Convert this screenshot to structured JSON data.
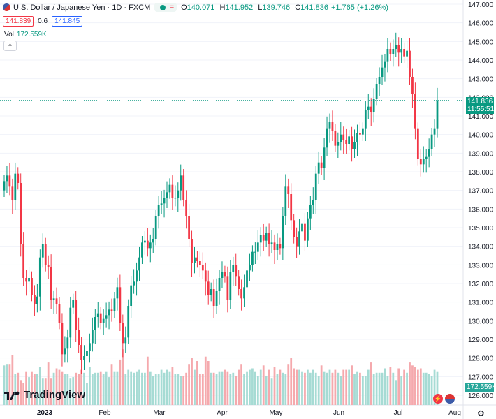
{
  "header": {
    "symbol_title": "U.S. Dollar / Japanese Yen · 1D · FXCM",
    "market_status_label": "=",
    "ohlc": [
      {
        "label": "O",
        "value": "140.071"
      },
      {
        "label": "H",
        "value": "141.952"
      },
      {
        "label": "L",
        "value": "139.746"
      },
      {
        "label": "C",
        "value": "141.836"
      }
    ],
    "change": "+1.765 (+1.26%)"
  },
  "quote": {
    "bid": "141.839",
    "spread": "0.6",
    "ask": "141.845"
  },
  "volume_legend": {
    "label": "Vol",
    "value": "172.559K"
  },
  "collapse_label": "^",
  "price_badge": {
    "price": "141.836",
    "countdown": "11:55:51"
  },
  "volume_badge": "172.559K",
  "logo_text": "TradingView",
  "settings_icon": "gear-icon",
  "colors": {
    "up": "#089981",
    "down": "#f23645",
    "vol_up": "#a6dbd4",
    "vol_down": "#f5a9ad",
    "grid": "#f0f3fa",
    "last_line": "#089981"
  },
  "chart_data": {
    "type": "candlestick",
    "y_ticks": [
      "147.000",
      "146.000",
      "145.000",
      "144.000",
      "143.000",
      "142.000",
      "141.000",
      "140.000",
      "139.000",
      "138.000",
      "137.000",
      "136.000",
      "135.000",
      "134.000",
      "133.000",
      "132.000",
      "131.000",
      "130.000",
      "129.000",
      "128.000",
      "127.000",
      "126.000"
    ],
    "x_ticks": [
      "2023",
      "Feb",
      "Mar",
      "Apr",
      "May",
      "Jun",
      "Jul",
      "Aug"
    ],
    "ylim": [
      126,
      147
    ],
    "last_price": 141.836,
    "closes": [
      137.5,
      137.8,
      137.2,
      136.5,
      137.9,
      137.4,
      134.1,
      132.3,
      132.1,
      132.3,
      131.4,
      130.9,
      131.3,
      133.4,
      134.1,
      133.0,
      132.9,
      131.1,
      131.2,
      130.9,
      129.9,
      128.2,
      128.5,
      129.1,
      130.7,
      131.1,
      129.5,
      128.7,
      127.9,
      128.1,
      128.4,
      128.8,
      129.5,
      130.2,
      130.4,
      129.9,
      130.1,
      130.3,
      130.6,
      130.5,
      131.2,
      131.8,
      129.9,
      128.8,
      129.1,
      130.8,
      131.9,
      132.1,
      132.7,
      133.4,
      134.2,
      134.3,
      133.9,
      134.2,
      134.4,
      135.6,
      136.2,
      136.3,
      136.6,
      136.9,
      137.3,
      136.6,
      136.6,
      137.0,
      137.8,
      136.5,
      135.6,
      134.4,
      133.1,
      133.4,
      133.2,
      133.0,
      132.7,
      132.1,
      131.4,
      131.7,
      130.8,
      131.6,
      132.3,
      132.6,
      132.4,
      131.1,
      132.6,
      133.0,
      132.4,
      131.7,
      131.2,
      131.8,
      132.7,
      133.0,
      133.7,
      133.7,
      134.2,
      134.6,
      134.3,
      134.7,
      134.1,
      134.2,
      133.8,
      134.1,
      133.9,
      135.6,
      137.2,
      136.8,
      135.4,
      134.5,
      134.0,
      134.8,
      135.2,
      134.3,
      135.5,
      136.2,
      136.5,
      137.9,
      138.5,
      138.2,
      139.3,
      140.3,
      140.7,
      140.2,
      139.4,
      139.6,
      140.0,
      139.7,
      139.5,
      139.9,
      139.2,
      139.6,
      140.1,
      140.0,
      140.3,
      141.3,
      141.5,
      141.2,
      141.9,
      142.7,
      143.1,
      143.6,
      143.9,
      144.6,
      144.3,
      144.6,
      144.8,
      144.4,
      144.6,
      144.2,
      144.5,
      143.1,
      142.2,
      140.3,
      138.7,
      138.4,
      138.7,
      138.8,
      139.2,
      140.0,
      140.3,
      141.836
    ],
    "volumes_up": [
      27,
      28,
      21,
      19,
      21,
      26,
      18,
      22,
      21,
      21,
      18,
      19,
      22,
      15,
      26,
      21,
      22,
      22,
      21,
      23,
      19,
      23,
      23,
      21,
      24,
      23,
      22,
      23,
      24,
      22,
      22,
      23,
      20,
      21,
      21,
      24,
      22,
      24,
      23,
      21,
      21,
      20,
      24,
      22,
      21,
      23,
      23,
      21,
      22,
      21,
      23,
      24,
      25,
      23,
      20,
      24,
      20,
      18,
      21,
      22,
      21,
      24,
      23,
      24,
      22,
      24,
      22,
      20,
      23,
      22,
      24,
      22,
      20,
      24,
      21,
      23,
      20,
      20,
      24,
      21,
      22,
      22,
      22,
      25,
      20,
      22,
      17,
      20,
      22,
      22,
      22,
      21,
      20,
      24,
      23,
      23,
      19,
      20,
      18,
      23
    ],
    "volumes_down": [
      28,
      34,
      22,
      17,
      15,
      23,
      23,
      21,
      18,
      29,
      18,
      25,
      24,
      23,
      22,
      21,
      24,
      23,
      28,
      31,
      38,
      33,
      26,
      20,
      22,
      28,
      32,
      30,
      21,
      21,
      33,
      30,
      22,
      24,
      23,
      20,
      24,
      28,
      27,
      24,
      26,
      24,
      28,
      32,
      25,
      24,
      22,
      27,
      22,
      24,
      24,
      24,
      27,
      22,
      29,
      26,
      25,
      24,
      29,
      27,
      26,
      24,
      25,
      24,
      26,
      23,
      22,
      24,
      27,
      24,
      24,
      35,
      27,
      25,
      26,
      27,
      25,
      22,
      22,
      23,
      42
    ]
  }
}
